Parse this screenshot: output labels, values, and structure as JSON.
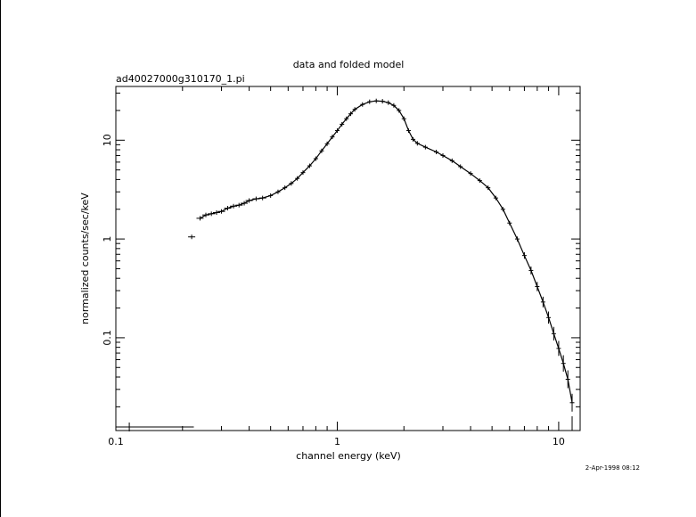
{
  "chart_data": {
    "type": "scatter",
    "title": "data and folded model",
    "subtitle": "ad40027000g310170_1.pi",
    "xlabel": "channel energy (keV)",
    "ylabel": "normalized counts/sec/keV",
    "timestamp": "2-Apr-1998 08:12",
    "x_scale": "log",
    "y_scale": "log",
    "xlim": [
      0.1,
      12.5
    ],
    "ylim": [
      0.0115,
      35
    ],
    "x_ticks": [
      {
        "value": 0.1,
        "label": "0.1"
      },
      {
        "value": 1,
        "label": "1"
      },
      {
        "value": 10,
        "label": "10"
      }
    ],
    "y_ticks": [
      {
        "value": 0.1,
        "label": "0.1"
      },
      {
        "value": 1,
        "label": "1"
      },
      {
        "value": 10,
        "label": "10"
      }
    ],
    "grid": false,
    "series": [
      {
        "points": [
          [
            0.22,
            1.05
          ],
          [
            0.24,
            1.62
          ],
          [
            0.255,
            1.75
          ],
          [
            0.27,
            1.8
          ],
          [
            0.285,
            1.85
          ],
          [
            0.3,
            1.9
          ],
          [
            0.32,
            2.05
          ],
          [
            0.34,
            2.15
          ],
          [
            0.36,
            2.2
          ],
          [
            0.38,
            2.3
          ],
          [
            0.4,
            2.45
          ],
          [
            0.43,
            2.55
          ],
          [
            0.46,
            2.6
          ],
          [
            0.5,
            2.75
          ],
          [
            0.54,
            3.0
          ],
          [
            0.58,
            3.3
          ],
          [
            0.62,
            3.65
          ],
          [
            0.66,
            4.1
          ],
          [
            0.7,
            4.7
          ],
          [
            0.75,
            5.5
          ],
          [
            0.8,
            6.5
          ],
          [
            0.85,
            7.8
          ],
          [
            0.9,
            9.2
          ],
          [
            0.95,
            10.8
          ],
          [
            1.0,
            12.5
          ],
          [
            1.05,
            14.5
          ],
          [
            1.1,
            16.5
          ],
          [
            1.15,
            18.5
          ],
          [
            1.2,
            20.5
          ],
          [
            1.3,
            23.0
          ],
          [
            1.4,
            24.5
          ],
          [
            1.5,
            25.0
          ],
          [
            1.6,
            24.8
          ],
          [
            1.7,
            24.0
          ],
          [
            1.8,
            22.5
          ],
          [
            1.9,
            20.0
          ],
          [
            2.0,
            16.5
          ],
          [
            2.1,
            12.5
          ],
          [
            2.2,
            10.2
          ],
          [
            2.3,
            9.3
          ],
          [
            2.5,
            8.5
          ],
          [
            2.8,
            7.6
          ],
          [
            3.0,
            7.0
          ],
          [
            3.3,
            6.2
          ],
          [
            3.6,
            5.4
          ],
          [
            4.0,
            4.6
          ],
          [
            4.4,
            3.9
          ],
          [
            4.8,
            3.3
          ],
          [
            5.2,
            2.6
          ],
          [
            5.6,
            2.0
          ],
          [
            6.0,
            1.45
          ],
          [
            6.5,
            1.0
          ],
          [
            7.0,
            0.68
          ],
          [
            7.5,
            0.48
          ],
          [
            8.0,
            0.33
          ],
          [
            8.5,
            0.23
          ],
          [
            9.0,
            0.16
          ],
          [
            9.5,
            0.11
          ],
          [
            10.0,
            0.078
          ],
          [
            10.5,
            0.055
          ],
          [
            11.0,
            0.038
          ],
          [
            11.5,
            0.022
          ]
        ]
      }
    ],
    "x_error_bar": {
      "x_low": 0.1,
      "x_high": 0.225,
      "x": 0.115,
      "y": 0.0125
    }
  }
}
